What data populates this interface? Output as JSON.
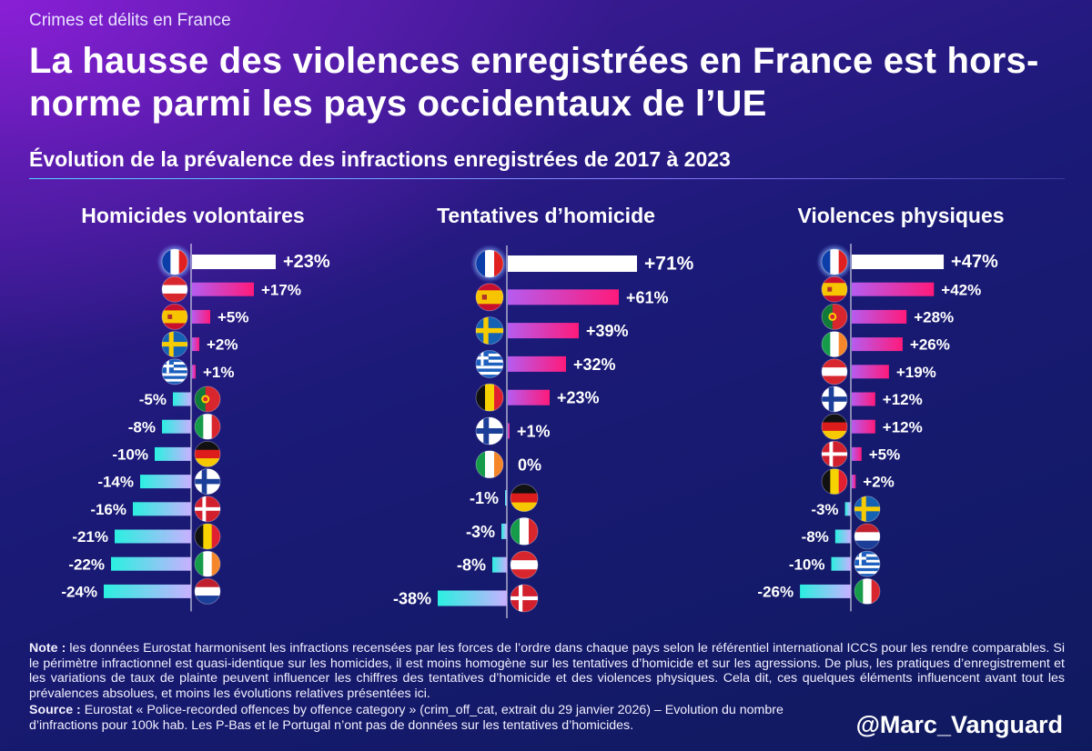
{
  "kicker": "Crimes et délits en France",
  "title": "La hausse des violences enregistrées en France est hors-norme parmi les pays occidentaux de l’UE",
  "subtitle": "Évolution de la prévalence des infractions enregistrées de 2017 à 2023",
  "note_label": "Note :",
  "note_text": "les données Eurostat harmonisent les infractions recensées par les forces de l’ordre dans chaque pays selon le référentiel international ICCS pour les rendre comparables. Si le périmètre infractionnel est quasi-identique sur les homicides, il est moins homogène sur les tentatives d’homicide et sur les agressions. De plus, les pratiques d’enregistrement et les variations de taux de plainte peuvent influencer les chiffres des tentatives d’homicide et des violences physiques. Cela dit, ces quelques éléments influencent avant tout les prévalences absolues, et moins les évolutions relatives présentées ici.",
  "source_label": "Source :",
  "source_text": "Eurostat « Police-recorded offences by offence category » (crim_off_cat, extrait du 29 janvier 2026) – Evolution du nombre d’infractions pour 100k hab. Les P-Bas et le Portugal n’ont pas de données sur les tentatives d’homicides.",
  "handle": "@Marc_Vanguard",
  "colors": {
    "highlight_bar": "#ffffff",
    "positive_start": "#b65cf0",
    "positive_end": "#ff1a7a",
    "negative_start": "#2af0e0",
    "negative_end": "#c9b0ff"
  },
  "chart_data": [
    {
      "type": "bar",
      "orientation": "horizontal",
      "title": "Homicides volontaires",
      "unit": "%",
      "highlight": "France",
      "categories": [
        "France",
        "Autriche",
        "Espagne",
        "Suède",
        "Grèce",
        "Portugal",
        "Italie",
        "Allemagne",
        "Finlande",
        "Danemark",
        "Belgique",
        "Irlande",
        "Pays-Bas"
      ],
      "flags": [
        "france",
        "austria",
        "spain",
        "sweden",
        "greece",
        "portugal",
        "italy",
        "germany",
        "finland",
        "denmark",
        "belgium",
        "ireland",
        "netherlands"
      ],
      "values": [
        23,
        17,
        5,
        2,
        1,
        -5,
        -8,
        -10,
        -14,
        -16,
        -21,
        -22,
        -24
      ],
      "labels": [
        "+23%",
        "+17%",
        "+5%",
        "+2%",
        "+1%",
        "-5%",
        "-8%",
        "-10%",
        "-14%",
        "-16%",
        "-21%",
        "-22%",
        "-24%"
      ]
    },
    {
      "type": "bar",
      "orientation": "horizontal",
      "title": "Tentatives d’homicide",
      "unit": "%",
      "highlight": "France",
      "categories": [
        "France",
        "Espagne",
        "Suède",
        "Grèce",
        "Belgique",
        "Finlande",
        "Irlande",
        "Allemagne",
        "Italie",
        "Autriche",
        "Danemark"
      ],
      "flags": [
        "france",
        "spain",
        "sweden",
        "greece",
        "belgium",
        "finland",
        "ireland",
        "germany",
        "italy",
        "austria",
        "denmark"
      ],
      "values": [
        71,
        61,
        39,
        32,
        23,
        1,
        0,
        -1,
        -3,
        -8,
        -38
      ],
      "labels": [
        "+71%",
        "+61%",
        "+39%",
        "+32%",
        "+23%",
        "+1%",
        "0%",
        "-1%",
        "-3%",
        "-8%",
        "-38%"
      ]
    },
    {
      "type": "bar",
      "orientation": "horizontal",
      "title": "Violences physiques",
      "unit": "%",
      "highlight": "France",
      "categories": [
        "France",
        "Espagne",
        "Portugal",
        "Irlande",
        "Autriche",
        "Finlande",
        "Allemagne",
        "Danemark",
        "Belgique",
        "Suède",
        "Pays-Bas",
        "Grèce",
        "Italie"
      ],
      "flags": [
        "france",
        "spain",
        "portugal",
        "ireland",
        "austria",
        "finland",
        "germany",
        "denmark",
        "belgium",
        "sweden",
        "netherlands",
        "greece",
        "italy"
      ],
      "values": [
        47,
        42,
        28,
        26,
        19,
        12,
        12,
        5,
        2,
        -3,
        -8,
        -10,
        -26
      ],
      "labels": [
        "+47%",
        "+42%",
        "+28%",
        "+26%",
        "+19%",
        "+12%",
        "+12%",
        "+5%",
        "+2%",
        "-3%",
        "-8%",
        "-10%",
        "-26%"
      ]
    }
  ]
}
